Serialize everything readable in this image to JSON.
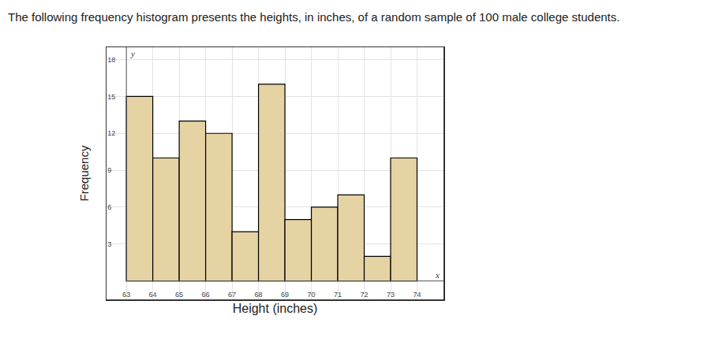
{
  "chart_data": {
    "type": "histogram",
    "title": "The following frequency histogram presents the heights, in inches, of a random sample of 100 male college students.",
    "x_label": "Height (inches)",
    "y_label": "Frequency",
    "bins": [
      63,
      64,
      65,
      66,
      67,
      68,
      69,
      70,
      71,
      72,
      73,
      74
    ],
    "counts": [
      15,
      10,
      13,
      12,
      4,
      16,
      5,
      6,
      7,
      2,
      10
    ],
    "color": "#e6d3a3",
    "xlim": [
      62.25,
      75
    ],
    "ylim": [
      -1.5,
      19
    ],
    "xticks": [
      63,
      64,
      65,
      66,
      67,
      68,
      69,
      70,
      71,
      72,
      73,
      74
    ],
    "yticks": [
      3,
      6,
      9,
      12,
      15,
      18
    ],
    "grid": true,
    "annotations": [
      {
        "text": "y",
        "axis": "y"
      },
      {
        "text": "x",
        "axis": "x"
      }
    ]
  }
}
